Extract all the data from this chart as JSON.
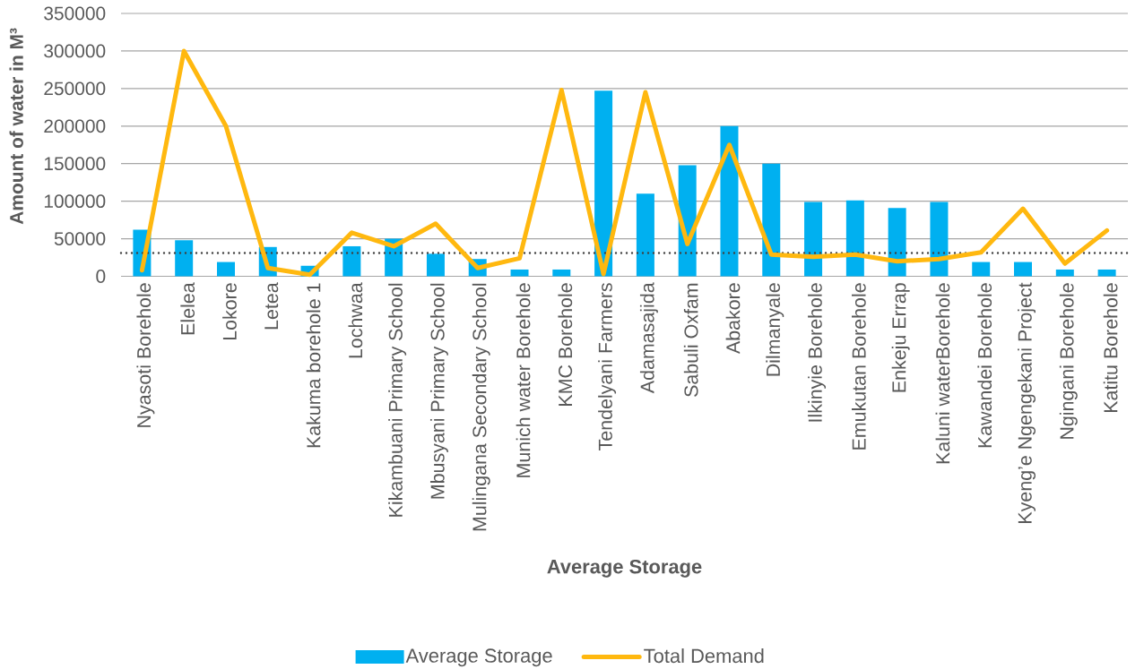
{
  "chart_data": {
    "type": "bar",
    "xlabel": "Average Storage",
    "ylabel": "Amount of water in M³",
    "categories": [
      "Nyasoti Borehole",
      "Elelea",
      "Lokore",
      "Letea",
      "Kakuma borehole 1",
      "Lochwaa",
      "Kikambuani Primary School",
      "Mbusyani Primary School",
      "Mulingana Secondary School",
      "Munich water Borehole",
      "KMC Borehole",
      "Tendelyani Farmers",
      "Adamasajida",
      "Sabuli Oxfam",
      "Abakore",
      "Dilmanyale",
      "Ilkinyie Borehole",
      "Emukutan Borehole",
      "Enkeju Errap",
      "Kaluni waterBorehole",
      "Kawandei Borehole",
      "Kyeng’e Ngengekani Project",
      "Ngingani Borehole",
      "Katitu Borehole"
    ],
    "series": [
      {
        "name": "Average Storage",
        "color": "#00b0f0",
        "values": [
          62000,
          48000,
          19000,
          39000,
          14000,
          40000,
          50000,
          30000,
          23000,
          9000,
          9000,
          247000,
          110000,
          148000,
          200000,
          150000,
          99000,
          101000,
          91000,
          99000,
          19000,
          19000,
          9000,
          9000
        ]
      },
      {
        "name": "Total Demand",
        "type": "line",
        "color": "#ffb80f",
        "values": [
          8000,
          300000,
          200000,
          11000,
          2000,
          58000,
          40000,
          70000,
          11000,
          24000,
          248000,
          3000,
          245000,
          43000,
          175000,
          29000,
          26000,
          29000,
          20000,
          23000,
          32000,
          90000,
          17000,
          61000
        ]
      }
    ],
    "ylim": [
      0,
      350000
    ],
    "yticks": [
      0,
      50000,
      100000,
      150000,
      200000,
      250000,
      300000,
      350000
    ],
    "grid": "y",
    "legend": "bottom",
    "ref_lines": [
      {
        "axis": "y",
        "value": 31000,
        "line_style": "dotted",
        "color": "#404040"
      }
    ]
  }
}
